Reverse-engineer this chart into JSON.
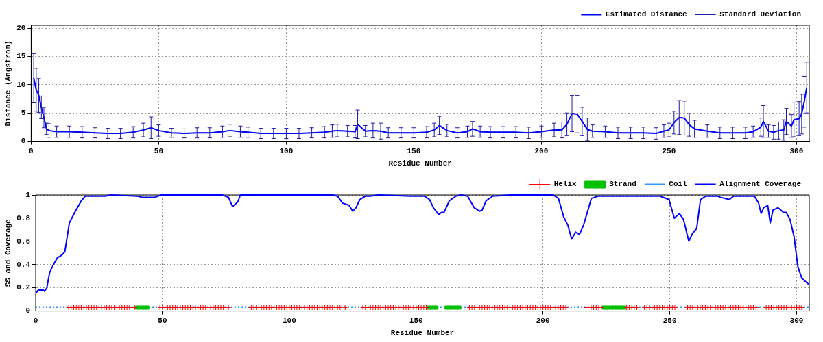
{
  "chart_data": [
    {
      "type": "line",
      "xlabel": "Residue Number",
      "ylabel": "Distance (Angstrom)",
      "xlim": [
        0,
        305
      ],
      "xticks": [
        0,
        50,
        100,
        150,
        200,
        250,
        300
      ],
      "ylim": [
        0,
        20.5
      ],
      "yticks": [
        0,
        5,
        10,
        15,
        20
      ],
      "grid": true,
      "legend": "top right",
      "x": [
        1,
        2,
        3,
        4,
        5,
        6,
        7,
        10,
        15,
        20,
        25,
        30,
        35,
        40,
        44,
        47,
        50,
        55,
        60,
        65,
        70,
        75,
        78,
        82,
        85,
        90,
        95,
        100,
        105,
        110,
        115,
        118,
        120,
        124,
        127,
        128,
        131,
        134,
        137,
        140,
        145,
        150,
        155,
        158,
        160,
        163,
        167,
        171,
        173,
        176,
        180,
        185,
        190,
        195,
        200,
        205,
        208,
        210,
        212,
        214,
        216,
        218,
        220,
        225,
        230,
        235,
        240,
        245,
        248,
        250,
        252,
        254,
        256,
        258,
        260,
        265,
        270,
        275,
        280,
        283,
        286,
        287,
        289,
        291,
        293,
        295,
        296,
        298,
        299,
        301,
        302,
        303,
        304
      ],
      "series": [
        {
          "name": "Estimated Distance",
          "type": "line",
          "marker": "none",
          "color": "#0000ff",
          "values": [
            11.2,
            9.1,
            8.1,
            6.0,
            4.2,
            2.2,
            1.9,
            1.7,
            1.7,
            1.6,
            1.5,
            1.4,
            1.4,
            1.6,
            2.0,
            2.4,
            1.9,
            1.5,
            1.4,
            1.5,
            1.5,
            1.7,
            1.9,
            1.7,
            1.6,
            1.4,
            1.4,
            1.4,
            1.4,
            1.5,
            1.6,
            1.8,
            1.9,
            1.8,
            1.7,
            3.0,
            1.8,
            1.9,
            1.8,
            1.5,
            1.5,
            1.5,
            1.6,
            2.0,
            2.8,
            1.9,
            1.5,
            1.7,
            2.2,
            1.7,
            1.6,
            1.6,
            1.6,
            1.5,
            1.7,
            2.0,
            2.0,
            3.0,
            4.9,
            4.8,
            3.5,
            2.1,
            1.8,
            1.7,
            1.5,
            1.5,
            1.5,
            1.4,
            1.8,
            2.0,
            3.3,
            4.2,
            4.1,
            2.9,
            2.2,
            1.8,
            1.5,
            1.5,
            1.5,
            1.7,
            2.5,
            3.5,
            1.8,
            1.6,
            1.9,
            2.0,
            3.5,
            2.7,
            3.8,
            4.0,
            4.8,
            7.0,
            9.5
          ]
        },
        {
          "name": "Standard Deviation",
          "type": "line",
          "marker": "none",
          "color": "#1c1ca8",
          "values": [
            11.2,
            9.1,
            8.1,
            6.0,
            4.2,
            2.2,
            1.9,
            1.7,
            1.7,
            1.6,
            1.5,
            1.4,
            1.4,
            1.6,
            2.0,
            2.4,
            1.9,
            1.5,
            1.4,
            1.5,
            1.5,
            1.7,
            1.9,
            1.7,
            1.6,
            1.4,
            1.4,
            1.4,
            1.4,
            1.5,
            1.6,
            1.8,
            1.9,
            1.8,
            1.7,
            3.0,
            1.8,
            1.9,
            1.8,
            1.5,
            1.5,
            1.5,
            1.6,
            2.0,
            2.8,
            1.9,
            1.5,
            1.7,
            2.2,
            1.7,
            1.6,
            1.6,
            1.6,
            1.5,
            1.7,
            2.0,
            2.0,
            3.0,
            4.9,
            4.8,
            3.5,
            2.1,
            1.8,
            1.7,
            1.5,
            1.5,
            1.5,
            1.4,
            1.8,
            2.0,
            3.3,
            4.2,
            4.1,
            2.9,
            2.2,
            1.8,
            1.5,
            1.5,
            1.5,
            1.7,
            2.5,
            3.5,
            1.8,
            1.6,
            1.9,
            2.0,
            3.5,
            2.7,
            3.8,
            4.0,
            4.8,
            7.0,
            9.5
          ],
          "errors": [
            4.3,
            3.8,
            3.0,
            2.0,
            1.8,
            1.0,
            1.2,
            1.0,
            1.0,
            1.0,
            0.9,
            0.9,
            0.9,
            1.0,
            1.2,
            1.9,
            1.0,
            0.8,
            0.8,
            0.9,
            0.9,
            1.0,
            1.1,
            1.0,
            0.9,
            0.9,
            0.9,
            0.9,
            0.9,
            0.9,
            1.0,
            1.1,
            1.1,
            1.0,
            1.1,
            2.5,
            1.0,
            1.3,
            1.4,
            0.9,
            0.9,
            0.9,
            1.0,
            1.2,
            1.6,
            1.1,
            0.9,
            1.0,
            1.3,
            1.0,
            1.0,
            1.0,
            1.0,
            1.0,
            1.0,
            1.2,
            1.4,
            2.0,
            3.2,
            3.3,
            2.5,
            2.0,
            1.1,
            1.0,
            1.0,
            1.0,
            1.0,
            1.0,
            1.1,
            1.2,
            2.0,
            3.0,
            3.0,
            2.0,
            1.5,
            1.1,
            1.0,
            1.0,
            1.0,
            1.0,
            1.6,
            2.8,
            1.1,
            1.2,
            1.5,
            1.8,
            2.3,
            2.0,
            3.0,
            3.0,
            3.5,
            4.5,
            4.5
          ]
        }
      ]
    },
    {
      "type": "line",
      "xlabel": "Residue Number",
      "ylabel": "SS and Coverage",
      "xlim": [
        0,
        305
      ],
      "xticks": [
        0,
        50,
        100,
        150,
        200,
        250,
        300
      ],
      "ylim": [
        0,
        1
      ],
      "yticks": [
        0,
        0.2,
        0.4,
        0.6,
        0.8,
        1
      ],
      "grid": true,
      "legend": "top right",
      "series": [
        {
          "name": "Helix",
          "type": "scatter",
          "marker": "cross",
          "color": "#ff0000",
          "x": [
            13,
            14,
            15,
            16,
            17,
            18,
            19,
            20,
            21,
            22,
            23,
            24,
            25,
            26,
            27,
            28,
            29,
            30,
            31,
            32,
            33,
            34,
            35,
            36,
            37,
            38,
            39,
            49,
            50,
            51,
            52,
            53,
            54,
            55,
            56,
            57,
            58,
            59,
            60,
            61,
            62,
            63,
            64,
            65,
            66,
            67,
            68,
            69,
            70,
            71,
            72,
            73,
            74,
            75,
            76,
            85,
            86,
            87,
            88,
            89,
            90,
            91,
            92,
            93,
            94,
            95,
            96,
            97,
            98,
            99,
            100,
            101,
            102,
            103,
            104,
            105,
            106,
            107,
            108,
            109,
            110,
            111,
            112,
            113,
            114,
            115,
            116,
            117,
            118,
            119,
            120,
            122,
            129,
            130,
            131,
            132,
            133,
            134,
            135,
            136,
            137,
            138,
            139,
            140,
            141,
            142,
            143,
            144,
            145,
            146,
            147,
            148,
            149,
            150,
            151,
            152,
            153,
            154,
            171,
            172,
            173,
            174,
            175,
            176,
            177,
            178,
            179,
            180,
            181,
            182,
            183,
            184,
            185,
            186,
            187,
            188,
            189,
            190,
            191,
            192,
            193,
            194,
            195,
            196,
            197,
            198,
            199,
            200,
            201,
            202,
            203,
            204,
            205,
            206,
            207,
            208,
            209,
            217,
            219,
            220,
            221,
            222,
            223,
            233,
            234,
            235,
            236,
            237,
            240,
            241,
            242,
            243,
            244,
            245,
            246,
            247,
            248,
            249,
            250,
            251,
            252,
            257,
            258,
            259,
            260,
            261,
            262,
            263,
            264,
            265,
            266,
            267,
            268,
            269,
            270,
            271,
            272,
            273,
            274,
            275,
            276,
            277,
            278,
            279,
            280,
            281,
            282,
            283,
            284,
            288,
            289,
            290,
            291,
            292,
            293,
            294,
            295,
            296,
            297,
            298,
            299,
            300,
            301,
            302
          ],
          "values": [
            0.03,
            0.03,
            0.03,
            0.03,
            0.03,
            0.03,
            0.03,
            0.03,
            0.03,
            0.03,
            0.03,
            0.03,
            0.03,
            0.03,
            0.03,
            0.03,
            0.03,
            0.03,
            0.03,
            0.03,
            0.03,
            0.03,
            0.03,
            0.03,
            0.03,
            0.03,
            0.03,
            0.03,
            0.03,
            0.03,
            0.03,
            0.03,
            0.03,
            0.03,
            0.03,
            0.03,
            0.03,
            0.03,
            0.03,
            0.03,
            0.03,
            0.03,
            0.03,
            0.03,
            0.03,
            0.03,
            0.03,
            0.03,
            0.03,
            0.03,
            0.03,
            0.03,
            0.03,
            0.03,
            0.03,
            0.03,
            0.03,
            0.03,
            0.03,
            0.03,
            0.03,
            0.03,
            0.03,
            0.03,
            0.03,
            0.03,
            0.03,
            0.03,
            0.03,
            0.03,
            0.03,
            0.03,
            0.03,
            0.03,
            0.03,
            0.03,
            0.03,
            0.03,
            0.03,
            0.03,
            0.03,
            0.03,
            0.03,
            0.03,
            0.03,
            0.03,
            0.03,
            0.03,
            0.03,
            0.03,
            0.03,
            0.03,
            0.03,
            0.03,
            0.03,
            0.03,
            0.03,
            0.03,
            0.03,
            0.03,
            0.03,
            0.03,
            0.03,
            0.03,
            0.03,
            0.03,
            0.03,
            0.03,
            0.03,
            0.03,
            0.03,
            0.03,
            0.03,
            0.03,
            0.03,
            0.03,
            0.03,
            0.03,
            0.03,
            0.03,
            0.03,
            0.03,
            0.03,
            0.03,
            0.03,
            0.03,
            0.03,
            0.03,
            0.03,
            0.03,
            0.03,
            0.03,
            0.03,
            0.03,
            0.03,
            0.03,
            0.03,
            0.03,
            0.03,
            0.03,
            0.03,
            0.03,
            0.03,
            0.03,
            0.03,
            0.03,
            0.03,
            0.03,
            0.03,
            0.03,
            0.03,
            0.03,
            0.03,
            0.03,
            0.03,
            0.03,
            0.03,
            0.03,
            0.03,
            0.03,
            0.03,
            0.03,
            0.03,
            0.03,
            0.03,
            0.03,
            0.03,
            0.03,
            0.03,
            0.03,
            0.03,
            0.03,
            0.03,
            0.03,
            0.03,
            0.03,
            0.03,
            0.03,
            0.03,
            0.03,
            0.03,
            0.03,
            0.03,
            0.03,
            0.03,
            0.03,
            0.03,
            0.03,
            0.03,
            0.03,
            0.03,
            0.03,
            0.03,
            0.03,
            0.03,
            0.03,
            0.03,
            0.03,
            0.03,
            0.03,
            0.03,
            0.03,
            0.03,
            0.03,
            0.03,
            0.03,
            0.03,
            0.03,
            0.03,
            0.03,
            0.03,
            0.03,
            0.03,
            0.03,
            0.03,
            0.03,
            0.03,
            0.03,
            0.03,
            0.03,
            0.03,
            0.03,
            0.03,
            0.03
          ]
        },
        {
          "name": "Strand",
          "type": "scatter",
          "marker": "square",
          "color": "#00c000",
          "x": [
            40,
            41,
            42,
            43,
            44,
            155,
            156,
            157,
            158,
            162,
            163,
            164,
            165,
            166,
            167,
            224,
            225,
            226,
            227,
            228,
            229,
            230,
            231,
            232
          ],
          "values": [
            0.03,
            0.03,
            0.03,
            0.03,
            0.03,
            0.03,
            0.03,
            0.03,
            0.03,
            0.03,
            0.03,
            0.03,
            0.03,
            0.03,
            0.03,
            0.03,
            0.03,
            0.03,
            0.03,
            0.03,
            0.03,
            0.03,
            0.03,
            0.03
          ]
        },
        {
          "name": "Coil",
          "type": "line",
          "marker": "none",
          "line_style": "dotted",
          "color": "#3399ff",
          "x": [
            0,
            305
          ],
          "values": [
            0.03,
            0.03
          ]
        },
        {
          "name": "Alignment Coverage",
          "type": "line",
          "marker": "none",
          "color": "#0000ff",
          "x": [
            0,
            1,
            3,
            3.5,
            4.4,
            5.5,
            7,
            8.6,
            10.2,
            11.5,
            13.3,
            15.4,
            18,
            19.6,
            21,
            27.5,
            29.6,
            40,
            42,
            44,
            47,
            49.6,
            67,
            73.4,
            76,
            77.6,
            79.7,
            80.7,
            117,
            119,
            121,
            123.6,
            125,
            126.3,
            127.8,
            130,
            132,
            135,
            148,
            153.2,
            155.3,
            156.8,
            158.9,
            160,
            161,
            163.1,
            165.7,
            167.7,
            170.3,
            172.9,
            175,
            176,
            177.6,
            180.2,
            187.4,
            204,
            206.1,
            208.2,
            209.8,
            211.3,
            212.9,
            214.4,
            216,
            219.1,
            221.7,
            230,
            232.1,
            246.1,
            249.7,
            251.8,
            253.8,
            255.4,
            257.5,
            259,
            260.6,
            262.1,
            264.2,
            268.9,
            269.9,
            273.5,
            275.1,
            283.4,
            285,
            286,
            287,
            288.6,
            289.6,
            290.7,
            292.7,
            294.8,
            295.9,
            297.4,
            299,
            300.5,
            302.1,
            304.7
          ],
          "values": [
            0.15,
            0.18,
            0.18,
            0.17,
            0.2,
            0.33,
            0.4,
            0.46,
            0.48,
            0.51,
            0.76,
            0.85,
            0.95,
            0.99,
            0.99,
            0.99,
            1,
            0.99,
            0.98,
            0.98,
            0.98,
            1,
            1,
            1,
            0.98,
            0.9,
            0.94,
            1,
            1,
            0.99,
            0.93,
            0.91,
            0.86,
            0.89,
            0.96,
            0.99,
            0.99,
            1,
            0.99,
            0.99,
            0.96,
            0.89,
            0.83,
            0.85,
            0.85,
            0.95,
            0.99,
            1,
            0.99,
            0.89,
            0.86,
            0.87,
            0.95,
            0.99,
            1,
            1,
            0.97,
            0.81,
            0.74,
            0.62,
            0.68,
            0.66,
            0.74,
            0.97,
            0.99,
            0.99,
            0.99,
            0.99,
            0.96,
            0.8,
            0.84,
            0.79,
            0.6,
            0.67,
            0.71,
            0.96,
            0.99,
            0.99,
            0.98,
            0.96,
            0.99,
            0.99,
            0.93,
            0.84,
            0.89,
            0.91,
            0.76,
            0.87,
            0.89,
            0.85,
            0.85,
            0.79,
            0.64,
            0.38,
            0.28,
            0.23
          ]
        }
      ]
    }
  ]
}
